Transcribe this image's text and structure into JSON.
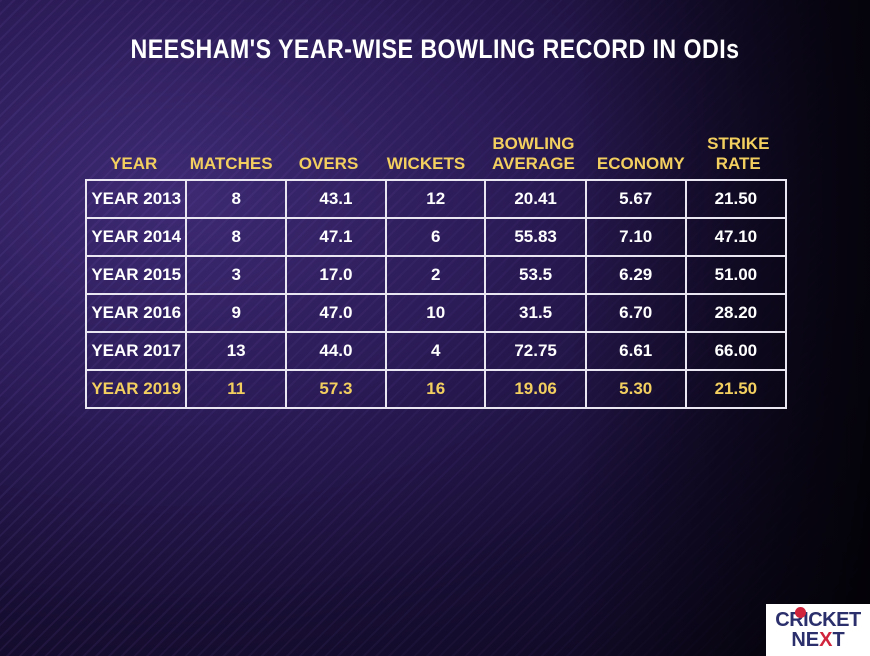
{
  "title": "NEESHAM'S YEAR-WISE BOWLING RECORD IN ODIs",
  "colors": {
    "accent": "#f2cf5f",
    "text": "#ffffff",
    "border": "#e9e6f2",
    "brand_red": "#d0243c",
    "brand_navy": "#2b2f6b"
  },
  "table": {
    "headers": [
      "YEAR",
      "MATCHES",
      "OVERS",
      "WICKETS",
      "BOWLING AVERAGE",
      "ECONOMY",
      "STRIKE RATE"
    ],
    "rows": [
      [
        "YEAR 2013",
        "8",
        "43.1",
        "12",
        "20.41",
        "5.67",
        "21.50"
      ],
      [
        "YEAR 2014",
        "8",
        "47.1",
        "6",
        "55.83",
        "7.10",
        "47.10"
      ],
      [
        "YEAR 2015",
        "3",
        "17.0",
        "2",
        "53.5",
        "6.29",
        "51.00"
      ],
      [
        "YEAR 2016",
        "9",
        "47.0",
        "10",
        "31.5",
        "6.70",
        "28.20"
      ],
      [
        "YEAR 2017",
        "13",
        "44.0",
        "4",
        "72.75",
        "6.61",
        "66.00"
      ],
      [
        "YEAR 2019",
        "11",
        "57.3",
        "16",
        "19.06",
        "5.30",
        "21.50"
      ]
    ]
  },
  "logo": {
    "top": "CRICKET",
    "bottom_left": "NE",
    "bottom_x": "X",
    "bottom_right": "T"
  }
}
